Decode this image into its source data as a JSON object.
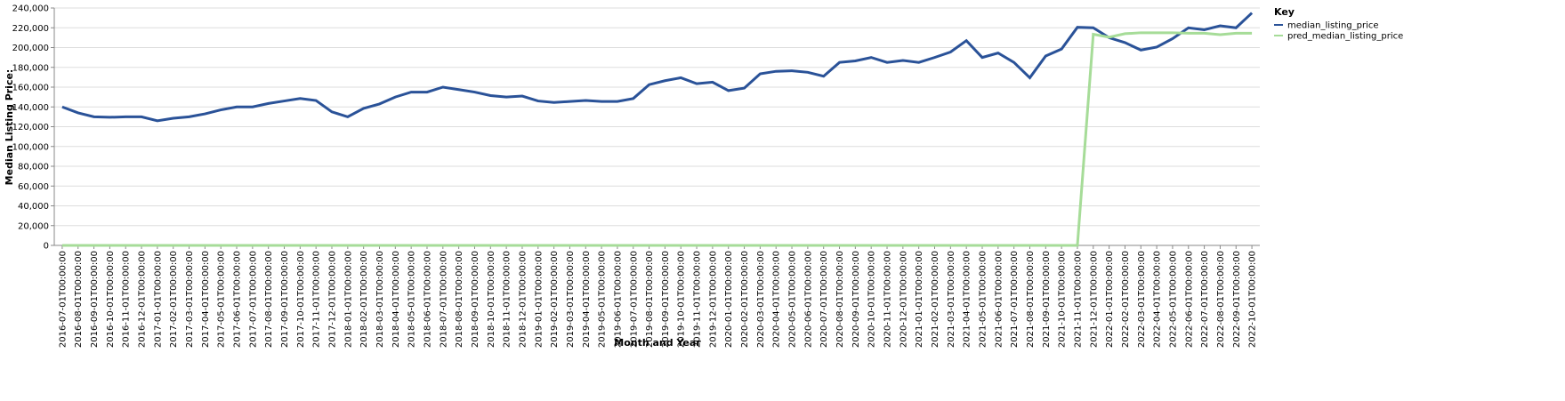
{
  "chart_data": {
    "type": "line",
    "x_label": "Month and Year",
    "y_label": "Median Listing Price:",
    "legend_title": "Key",
    "legend_position": "right",
    "grid": true,
    "categories": [
      "2016-07-01T00:00:00",
      "2016-08-01T00:00:00",
      "2016-09-01T00:00:00",
      "2016-10-01T00:00:00",
      "2016-11-01T00:00:00",
      "2016-12-01T00:00:00",
      "2017-01-01T00:00:00",
      "2017-02-01T00:00:00",
      "2017-03-01T00:00:00",
      "2017-04-01T00:00:00",
      "2017-05-01T00:00:00",
      "2017-06-01T00:00:00",
      "2017-07-01T00:00:00",
      "2017-08-01T00:00:00",
      "2017-09-01T00:00:00",
      "2017-10-01T00:00:00",
      "2017-11-01T00:00:00",
      "2017-12-01T00:00:00",
      "2018-01-01T00:00:00",
      "2018-02-01T00:00:00",
      "2018-03-01T00:00:00",
      "2018-04-01T00:00:00",
      "2018-05-01T00:00:00",
      "2018-06-01T00:00:00",
      "2018-07-01T00:00:00",
      "2018-08-01T00:00:00",
      "2018-09-01T00:00:00",
      "2018-10-01T00:00:00",
      "2018-11-01T00:00:00",
      "2018-12-01T00:00:00",
      "2019-01-01T00:00:00",
      "2019-02-01T00:00:00",
      "2019-03-01T00:00:00",
      "2019-04-01T00:00:00",
      "2019-05-01T00:00:00",
      "2019-06-01T00:00:00",
      "2019-07-01T00:00:00",
      "2019-08-01T00:00:00",
      "2019-09-01T00:00:00",
      "2019-10-01T00:00:00",
      "2019-11-01T00:00:00",
      "2019-12-01T00:00:00",
      "2020-01-01T00:00:00",
      "2020-02-01T00:00:00",
      "2020-03-01T00:00:00",
      "2020-04-01T00:00:00",
      "2020-05-01T00:00:00",
      "2020-06-01T00:00:00",
      "2020-07-01T00:00:00",
      "2020-08-01T00:00:00",
      "2020-09-01T00:00:00",
      "2020-10-01T00:00:00",
      "2020-11-01T00:00:00",
      "2020-12-01T00:00:00",
      "2021-01-01T00:00:00",
      "2021-02-01T00:00:00",
      "2021-03-01T00:00:00",
      "2021-04-01T00:00:00",
      "2021-05-01T00:00:00",
      "2021-06-01T00:00:00",
      "2021-07-01T00:00:00",
      "2021-08-01T00:00:00",
      "2021-09-01T00:00:00",
      "2021-10-01T00:00:00",
      "2021-11-01T00:00:00",
      "2021-12-01T00:00:00",
      "2022-01-01T00:00:00",
      "2022-02-01T00:00:00",
      "2022-03-01T00:00:00",
      "2022-04-01T00:00:00",
      "2022-05-01T00:00:00",
      "2022-06-01T00:00:00",
      "2022-07-01T00:00:00",
      "2022-08-01T00:00:00",
      "2022-09-01T00:00:00",
      "2022-10-01T00:00:00"
    ],
    "series": [
      {
        "name": "median_listing_price",
        "color": "#2a5298",
        "values": [
          140000,
          134000,
          130000,
          129500,
          130000,
          130000,
          126000,
          128500,
          130000,
          133000,
          137000,
          140000,
          140000,
          143500,
          146000,
          148500,
          146500,
          135000,
          130000,
          138500,
          143000,
          150000,
          155000,
          155000,
          160000,
          157500,
          155000,
          151500,
          150000,
          151000,
          146000,
          144500,
          145500,
          146500,
          145500,
          145500,
          148500,
          162500,
          166500,
          169500,
          163500,
          165000,
          156500,
          159000,
          173500,
          176000,
          176500,
          175000,
          171000,
          185000,
          186500,
          190000,
          185000,
          187000,
          185000,
          190000,
          195500,
          207000,
          190000,
          194500,
          185000,
          169500,
          191500,
          198500,
          220500,
          220000,
          210000,
          205000,
          197500,
          200500,
          209000,
          220000,
          218000,
          222000,
          220000,
          235000
        ]
      },
      {
        "name": "pred_median_listing_price",
        "color": "#a6dc98",
        "values": [
          0,
          0,
          0,
          0,
          0,
          0,
          0,
          0,
          0,
          0,
          0,
          0,
          0,
          0,
          0,
          0,
          0,
          0,
          0,
          0,
          0,
          0,
          0,
          0,
          0,
          0,
          0,
          0,
          0,
          0,
          0,
          0,
          0,
          0,
          0,
          0,
          0,
          0,
          0,
          0,
          0,
          0,
          0,
          0,
          0,
          0,
          0,
          0,
          0,
          0,
          0,
          0,
          0,
          0,
          0,
          0,
          0,
          0,
          0,
          0,
          0,
          0,
          0,
          0,
          0,
          213500,
          210500,
          214000,
          215000,
          215000,
          215000,
          214500,
          214500,
          213000,
          214500,
          214500
        ]
      }
    ],
    "ylim": [
      0,
      240000
    ],
    "yticks": [
      0,
      {
        "value": 20000,
        "label": "20,000"
      },
      {
        "value": 40000,
        "label": "40,000"
      },
      {
        "value": 60000,
        "label": "60,000"
      },
      {
        "value": 80000,
        "label": "80,000"
      },
      {
        "value": 100000,
        "label": "100,000"
      },
      {
        "value": 120000,
        "label": "120,000"
      },
      {
        "value": 140000,
        "label": "140,000"
      },
      {
        "value": 160000,
        "label": "160,000"
      },
      {
        "value": 180000,
        "label": "180,000"
      },
      {
        "value": 200000,
        "label": "200,000"
      },
      {
        "value": 220000,
        "label": "220,000"
      },
      {
        "value": 240000,
        "label": "240,000"
      }
    ]
  }
}
